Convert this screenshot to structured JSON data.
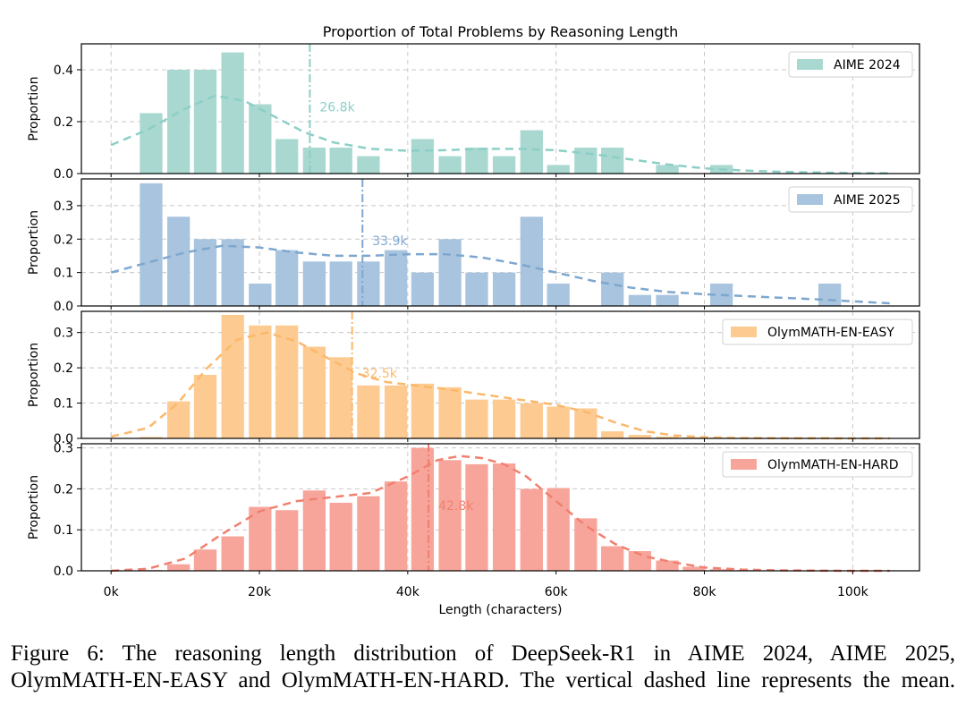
{
  "chart_data": {
    "type": "bar",
    "title": "Proportion of Total Problems by Reasoning Length",
    "xlabel": "Length (characters)",
    "ylabel": "Proportion",
    "xlim": [
      -4000,
      109000
    ],
    "xticks": [
      0,
      20000,
      40000,
      60000,
      80000,
      100000
    ],
    "xtick_labels": [
      "0k",
      "20k",
      "40k",
      "60k",
      "80k",
      "100k"
    ],
    "grid": true,
    "panels": [
      {
        "name": "AIME 2024",
        "legend": "top-right",
        "color": "#a8d8d0",
        "line_color": "#8ccfc6",
        "ylim": [
          0,
          0.5
        ],
        "yticks": [
          0.0,
          0.2,
          0.4
        ],
        "ytick_labels": [
          "0.0",
          "0.2",
          "0.4"
        ],
        "bin_centers": [
          5400,
          9100,
          12700,
          16400,
          20100,
          23700,
          27400,
          31000,
          34700,
          38400,
          42000,
          45700,
          49300,
          53000,
          56700,
          60300,
          64000,
          67600,
          71300,
          75000,
          78600,
          82300,
          85900,
          89600,
          93200,
          96900,
          100600,
          104200
        ],
        "values": [
          0.233,
          0.4,
          0.4,
          0.467,
          0.267,
          0.133,
          0.1,
          0.1,
          0.067,
          0,
          0.133,
          0.067,
          0.1,
          0.067,
          0.167,
          0.033,
          0.1,
          0.1,
          0,
          0.033,
          0,
          0.033,
          0,
          0,
          0,
          0,
          0,
          0
        ],
        "kde_x": [
          0,
          5000,
          10000,
          14000,
          18000,
          22000,
          26000,
          30000,
          35000,
          40000,
          45000,
          50000,
          55000,
          60000,
          65000,
          70000,
          75000,
          80000,
          85000,
          90000,
          95000,
          100000,
          105000
        ],
        "kde_y": [
          0.11,
          0.17,
          0.25,
          0.3,
          0.28,
          0.22,
          0.16,
          0.12,
          0.095,
          0.088,
          0.09,
          0.095,
          0.095,
          0.09,
          0.075,
          0.055,
          0.035,
          0.02,
          0.012,
          0.007,
          0.004,
          0.002,
          0.001
        ],
        "mean": 26800,
        "mean_label": "26.8k"
      },
      {
        "name": "AIME 2025",
        "legend": "top-right",
        "color": "#a9c4de",
        "line_color": "#7ea7cf",
        "ylim": [
          0,
          0.38
        ],
        "yticks": [
          0.0,
          0.1,
          0.2,
          0.3
        ],
        "ytick_labels": [
          "0.0",
          "0.1",
          "0.2",
          "0.3"
        ],
        "bin_centers": [
          5400,
          9100,
          12700,
          16400,
          20100,
          23700,
          27400,
          31000,
          34700,
          38400,
          42000,
          45700,
          49300,
          53000,
          56700,
          60300,
          64000,
          67600,
          71300,
          75000,
          78600,
          82300,
          85900,
          89600,
          93200,
          96900,
          100600,
          104200
        ],
        "values": [
          0.367,
          0.267,
          0.2,
          0.2,
          0.067,
          0.167,
          0.133,
          0.133,
          0.133,
          0.167,
          0.1,
          0.2,
          0.1,
          0.1,
          0.267,
          0.067,
          0,
          0.1,
          0.033,
          0.033,
          0,
          0.067,
          0,
          0,
          0,
          0.067,
          0,
          0
        ],
        "kde_x": [
          0,
          5000,
          10000,
          15000,
          20000,
          25000,
          30000,
          35000,
          40000,
          45000,
          50000,
          55000,
          60000,
          65000,
          70000,
          75000,
          80000,
          85000,
          90000,
          95000,
          100000,
          105000
        ],
        "kde_y": [
          0.1,
          0.13,
          0.16,
          0.18,
          0.175,
          0.16,
          0.15,
          0.15,
          0.155,
          0.155,
          0.145,
          0.125,
          0.1,
          0.075,
          0.055,
          0.042,
          0.035,
          0.03,
          0.025,
          0.02,
          0.014,
          0.008
        ],
        "mean": 33900,
        "mean_label": "33.9k"
      },
      {
        "name": "OlymMATH-EN-EASY",
        "legend": "top-right",
        "color": "#fdcb91",
        "line_color": "#fbb86b",
        "ylim": [
          0,
          0.36
        ],
        "yticks": [
          0.0,
          0.1,
          0.2,
          0.3
        ],
        "ytick_labels": [
          "0.0",
          "0.1",
          "0.2",
          "0.3"
        ],
        "bin_centers": [
          5400,
          9100,
          12700,
          16400,
          20100,
          23700,
          27400,
          31000,
          34700,
          38400,
          42000,
          45700,
          49300,
          53000,
          56700,
          60300,
          64000,
          67600,
          71300,
          75000,
          78600,
          82300,
          85900,
          89600,
          93200,
          96900,
          100600,
          104200
        ],
        "values": [
          0.004,
          0.105,
          0.18,
          0.35,
          0.32,
          0.32,
          0.26,
          0.23,
          0.15,
          0.15,
          0.155,
          0.145,
          0.11,
          0.11,
          0.1,
          0.09,
          0.085,
          0.02,
          0.01,
          0.005,
          0.003,
          0.002,
          0.001,
          0.001,
          0,
          0,
          0,
          0
        ],
        "kde_x": [
          0,
          5000,
          9000,
          13000,
          17000,
          21000,
          25000,
          29000,
          33000,
          37000,
          41000,
          45000,
          50000,
          55000,
          60000,
          64000,
          68000,
          72000,
          76000,
          80000,
          85000,
          90000,
          95000,
          100000,
          105000
        ],
        "kde_y": [
          0.005,
          0.03,
          0.1,
          0.2,
          0.28,
          0.3,
          0.275,
          0.23,
          0.185,
          0.16,
          0.15,
          0.14,
          0.125,
          0.11,
          0.095,
          0.075,
          0.045,
          0.02,
          0.008,
          0.003,
          0.001,
          0.0005,
          0.0002,
          0.0001,
          0
        ],
        "mean": 32500,
        "mean_label": "32.5k"
      },
      {
        "name": "OlymMATH-EN-HARD",
        "legend": "top-right",
        "color": "#f7a59a",
        "line_color": "#f08070",
        "ylim": [
          0,
          0.31
        ],
        "yticks": [
          0.0,
          0.1,
          0.2,
          0.3
        ],
        "ytick_labels": [
          "0.0",
          "0.1",
          "0.2",
          "0.3"
        ],
        "bin_centers": [
          5400,
          9100,
          12700,
          16400,
          20100,
          23700,
          27400,
          31000,
          34700,
          38400,
          42000,
          45700,
          49300,
          53000,
          56700,
          60300,
          64000,
          67600,
          71300,
          75000,
          78600,
          82300,
          85900,
          89600,
          93200,
          96900,
          100600,
          104200
        ],
        "values": [
          0.002,
          0.016,
          0.052,
          0.084,
          0.156,
          0.148,
          0.196,
          0.166,
          0.182,
          0.218,
          0.3,
          0.27,
          0.26,
          0.262,
          0.2,
          0.202,
          0.128,
          0.06,
          0.048,
          0.025,
          0.01,
          0.004,
          0.002,
          0,
          0,
          0,
          0,
          0
        ],
        "kde_x": [
          0,
          5000,
          10000,
          15000,
          20000,
          25000,
          30000,
          35000,
          40000,
          44000,
          47000,
          50000,
          53000,
          56000,
          60000,
          64000,
          68000,
          72000,
          76000,
          80000,
          85000,
          90000,
          95000,
          100000,
          105000
        ],
        "kde_y": [
          0.0,
          0.005,
          0.03,
          0.09,
          0.145,
          0.17,
          0.18,
          0.19,
          0.23,
          0.27,
          0.28,
          0.275,
          0.26,
          0.23,
          0.17,
          0.11,
          0.065,
          0.035,
          0.02,
          0.008,
          0.003,
          0.001,
          0.0004,
          0.0001,
          0
        ],
        "mean": 42800,
        "mean_label": "42.8k"
      }
    ]
  },
  "caption": {
    "line1": "Figure 6:  The reasoning length distribution of DeepSeek-R1 in AIME 2024, AIME 2025,",
    "line2": "OlymMATH-EN-EASY and OlymMATH-EN-HARD. The vertical dashed line represents the mean."
  }
}
